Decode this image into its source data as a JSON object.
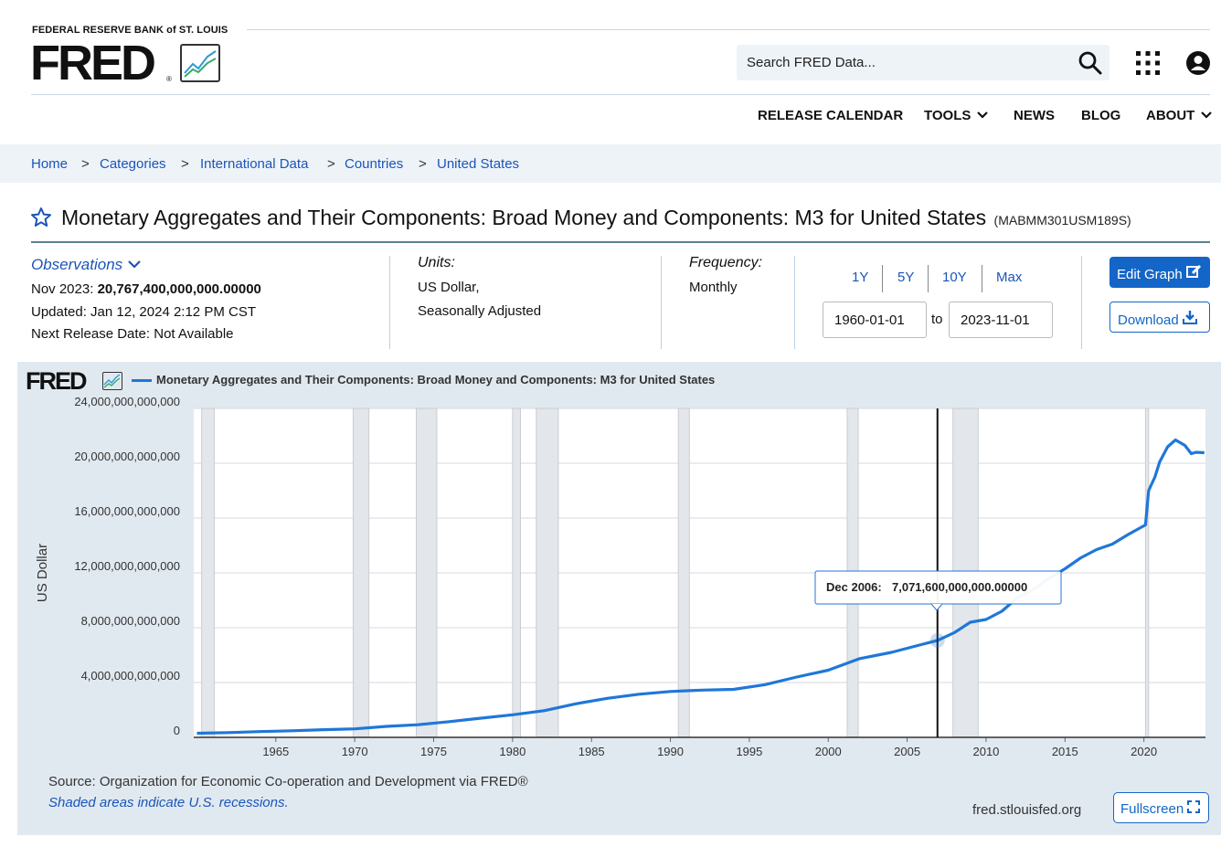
{
  "header": {
    "brand_sub": "FEDERAL RESERVE BANK of ST. LOUIS",
    "brand": "FRED",
    "brand_reg": "®",
    "search_placeholder": "Search FRED Data...",
    "nav": [
      "RELEASE CALENDAR",
      "TOOLS",
      "NEWS",
      "BLOG",
      "ABOUT"
    ]
  },
  "breadcrumb": {
    "items": [
      "Home",
      "Categories",
      "International Data",
      "Countries",
      "United States"
    ],
    "separator": ">"
  },
  "series": {
    "title": "Monetary Aggregates and Their Components: Broad Money and Components: M3 for United States",
    "id": "(MABMM301USM189S)"
  },
  "meta": {
    "observations_label": "Observations",
    "latest_label": "Nov 2023:",
    "latest_value": "20,767,400,000,000.00000",
    "updated": "Updated: Jan 12, 2024 2:12 PM CST",
    "next_release": "Next Release Date: Not Available",
    "units_label": "Units:",
    "units_line1": "US Dollar,",
    "units_line2": "Seasonally Adjusted",
    "frequency_label": "Frequency:",
    "frequency": "Monthly"
  },
  "range": {
    "buttons": [
      "1Y",
      "5Y",
      "10Y",
      "Max"
    ],
    "start": "1960-01-01",
    "to": "to",
    "end": "2023-11-01"
  },
  "actions": {
    "edit": "Edit Graph",
    "download": "Download",
    "fullscreen": "Fullscreen"
  },
  "graph": {
    "brand": "FRED",
    "legend": "Monetary Aggregates and Their Components: Broad Money and Components: M3 for United States",
    "source": "Source: Organization for Economic Co-operation and Development via FRED®",
    "shaded_note": "Shaded areas indicate U.S. recessions.",
    "site": "fred.stlouisfed.org"
  },
  "colors": {
    "accent": "#1366c7",
    "series": "#1f77d8",
    "panel_bg": "#e1e9f0",
    "recession": "#e3e6ea"
  },
  "chart_data": {
    "type": "line",
    "title": "Monetary Aggregates and Their Components: Broad Money and Components: M3 for United States",
    "ylabel": "US Dollar",
    "xlabel": "",
    "xlim": [
      1959.8,
      2023.9
    ],
    "ylim": [
      0,
      24000000000000
    ],
    "y_ticks": [
      0,
      4000000000000,
      8000000000000,
      12000000000000,
      16000000000000,
      20000000000000,
      24000000000000
    ],
    "y_tick_labels": [
      "0",
      "4,000,000,000,000",
      "8,000,000,000,000",
      "12,000,000,000,000",
      "16,000,000,000,000",
      "20,000,000,000,000",
      "24,000,000,000,000"
    ],
    "x_ticks": [
      1965,
      1970,
      1975,
      1980,
      1985,
      1990,
      1995,
      2000,
      2005,
      2010,
      2015,
      2020
    ],
    "recessions": [
      [
        1960.3,
        1961.1
      ],
      [
        1969.9,
        1970.9
      ],
      [
        1973.9,
        1975.2
      ],
      [
        1980.0,
        1980.5
      ],
      [
        1981.5,
        1982.9
      ],
      [
        1990.5,
        1991.2
      ],
      [
        2001.2,
        2001.9
      ],
      [
        2007.9,
        2009.5
      ],
      [
        2020.1,
        2020.3
      ]
    ],
    "series": [
      {
        "name": "MABMM301USM189S",
        "x": [
          1960,
          1962,
          1964,
          1966,
          1968,
          1970,
          1972,
          1974,
          1976,
          1978,
          1980,
          1982,
          1984,
          1986,
          1988,
          1990,
          1992,
          1994,
          1996,
          1998,
          2000,
          2002,
          2004,
          2006,
          2006.92,
          2008,
          2009,
          2010,
          2011,
          2012,
          2013,
          2014,
          2015,
          2016,
          2017,
          2018,
          2019,
          2020.1,
          2020.3,
          2020.7,
          2021,
          2021.5,
          2022,
          2022.3,
          2022.6,
          2023,
          2023.3,
          2023.83
        ],
        "y": [
          300000000000,
          350000000000,
          420000000000,
          480000000000,
          560000000000,
          620000000000,
          800000000000,
          920000000000,
          1150000000000,
          1400000000000,
          1650000000000,
          1950000000000,
          2450000000000,
          2850000000000,
          3150000000000,
          3350000000000,
          3450000000000,
          3500000000000,
          3850000000000,
          4400000000000,
          4900000000000,
          5750000000000,
          6200000000000,
          6800000000000,
          7071600000000,
          7650000000000,
          8400000000000,
          8600000000000,
          9200000000000,
          10200000000000,
          10800000000000,
          11600000000000,
          12300000000000,
          13100000000000,
          13700000000000,
          14100000000000,
          14800000000000,
          15500000000000,
          18000000000000,
          19000000000000,
          20100000000000,
          21200000000000,
          21700000000000,
          21500000000000,
          21300000000000,
          20700000000000,
          20800000000000,
          20767400000000
        ]
      }
    ],
    "annotations": [
      {
        "x": 2006.92,
        "label": "Dec 2006:",
        "value": "7,071,600,000,000.00000"
      }
    ]
  }
}
